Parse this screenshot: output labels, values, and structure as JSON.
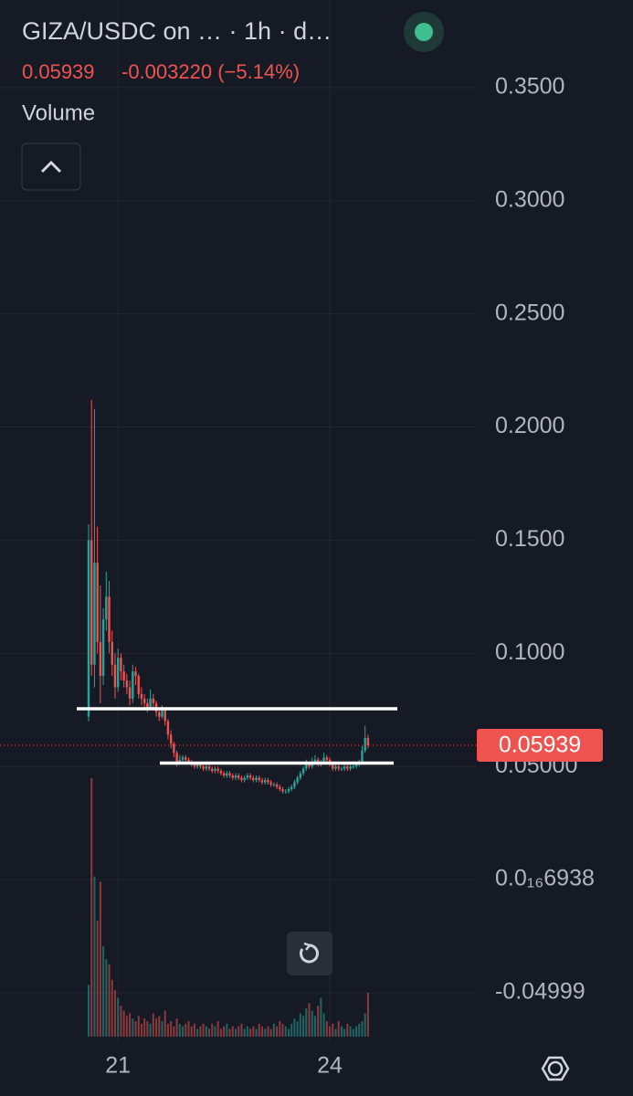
{
  "chart_data": {
    "type": "candlestick",
    "title": "GIZA/USDC on … · 1h · d…",
    "price": 0.05939,
    "change": "-0.003220 (−5.14%)",
    "volume_label": "Volume",
    "up_color": "#26a69a",
    "down_color": "#ef5350",
    "ylim": [
      -0.0714,
      0.3887
    ],
    "yticks": [
      {
        "value": 0.35,
        "label": "0.3500"
      },
      {
        "value": 0.3,
        "label": "0.3000"
      },
      {
        "value": 0.25,
        "label": "0.2500"
      },
      {
        "value": 0.2,
        "label": "0.2000"
      },
      {
        "value": 0.15,
        "label": "0.1500"
      },
      {
        "value": 0.1,
        "label": "0.1000"
      },
      {
        "value": 0.05,
        "label": "0.05000"
      },
      {
        "value": 6.938e-17,
        "label": "0.0₁₆6938"
      },
      -0.04999
    ],
    "grid": true,
    "levels": [
      0.0755,
      0.0515
    ],
    "categories": [
      null,
      null,
      null,
      null,
      null,
      null,
      null,
      null,
      null,
      null,
      "21",
      null,
      null,
      null,
      null,
      null,
      null,
      null,
      null,
      null,
      null,
      null,
      null,
      null,
      null,
      null,
      null,
      null,
      null,
      null,
      null,
      null,
      null,
      null,
      null,
      null,
      null,
      null,
      null,
      null,
      null,
      null,
      null,
      null,
      null,
      null,
      null,
      null,
      null,
      null,
      null,
      null,
      null,
      null,
      null,
      null,
      null,
      null,
      null,
      null,
      null,
      null,
      null,
      null,
      null,
      null,
      null,
      null,
      null,
      null,
      null,
      null,
      null,
      null,
      null,
      null,
      null,
      null,
      null,
      null,
      null,
      null,
      "24",
      null,
      null,
      null,
      null,
      null,
      null,
      null,
      null,
      null,
      null,
      null,
      null,
      null
    ],
    "ohlc": [
      [
        0.072,
        0.157,
        0.07,
        0.15
      ],
      [
        0.15,
        0.212,
        0.09,
        0.095
      ],
      [
        0.095,
        0.208,
        0.085,
        0.14
      ],
      [
        0.14,
        0.156,
        0.1,
        0.105
      ],
      [
        0.105,
        0.13,
        0.078,
        0.09
      ],
      [
        0.09,
        0.12,
        0.086,
        0.115
      ],
      [
        0.115,
        0.136,
        0.11,
        0.125
      ],
      [
        0.125,
        0.132,
        0.1,
        0.105
      ],
      [
        0.105,
        0.11,
        0.09,
        0.095
      ],
      [
        0.095,
        0.1,
        0.08,
        0.085
      ],
      [
        0.085,
        0.102,
        0.083,
        0.098
      ],
      [
        0.098,
        0.1,
        0.088,
        0.092
      ],
      [
        0.092,
        0.095,
        0.085,
        0.088
      ],
      [
        0.088,
        0.091,
        0.082,
        0.085
      ],
      [
        0.085,
        0.088,
        0.077,
        0.08
      ],
      [
        0.08,
        0.095,
        0.078,
        0.092
      ],
      [
        0.092,
        0.094,
        0.086,
        0.09
      ],
      [
        0.09,
        0.091,
        0.08,
        0.082
      ],
      [
        0.082,
        0.085,
        0.077,
        0.08
      ],
      [
        0.08,
        0.082,
        0.076,
        0.078
      ],
      [
        0.078,
        0.08,
        0.074,
        0.076
      ],
      [
        0.076,
        0.084,
        0.075,
        0.08
      ],
      [
        0.08,
        0.082,
        0.076,
        0.078
      ],
      [
        0.078,
        0.079,
        0.072,
        0.074
      ],
      [
        0.074,
        0.076,
        0.07,
        0.072
      ],
      [
        0.072,
        0.077,
        0.071,
        0.075
      ],
      [
        0.075,
        0.076,
        0.068,
        0.07
      ],
      [
        0.07,
        0.071,
        0.062,
        0.064
      ],
      [
        0.064,
        0.066,
        0.058,
        0.06
      ],
      [
        0.06,
        0.061,
        0.054,
        0.056
      ],
      [
        0.056,
        0.057,
        0.05,
        0.052
      ],
      [
        0.052,
        0.055,
        0.051,
        0.053
      ],
      [
        0.053,
        0.055,
        0.052,
        0.054
      ],
      [
        0.054,
        0.055,
        0.052,
        0.053
      ],
      [
        0.053,
        0.054,
        0.051,
        0.052
      ],
      [
        0.052,
        0.053,
        0.05,
        0.051
      ],
      [
        0.051,
        0.052,
        0.049,
        0.05
      ],
      [
        0.05,
        0.052,
        0.049,
        0.051
      ],
      [
        0.051,
        0.052,
        0.049,
        0.05
      ],
      [
        0.05,
        0.051,
        0.048,
        0.049
      ],
      [
        0.049,
        0.051,
        0.048,
        0.05
      ],
      [
        0.05,
        0.051,
        0.048,
        0.049
      ],
      [
        0.049,
        0.05,
        0.047,
        0.048
      ],
      [
        0.048,
        0.05,
        0.047,
        0.049
      ],
      [
        0.049,
        0.05,
        0.047,
        0.048
      ],
      [
        0.048,
        0.049,
        0.046,
        0.047
      ],
      [
        0.047,
        0.048,
        0.045,
        0.046
      ],
      [
        0.046,
        0.048,
        0.045,
        0.047
      ],
      [
        0.047,
        0.048,
        0.045,
        0.046
      ],
      [
        0.046,
        0.047,
        0.044,
        0.045
      ],
      [
        0.045,
        0.047,
        0.044,
        0.046
      ],
      [
        0.046,
        0.047,
        0.044,
        0.045
      ],
      [
        0.045,
        0.046,
        0.043,
        0.044
      ],
      [
        0.044,
        0.046,
        0.043,
        0.045
      ],
      [
        0.045,
        0.047,
        0.044,
        0.046
      ],
      [
        0.046,
        0.047,
        0.044,
        0.045
      ],
      [
        0.045,
        0.046,
        0.043,
        0.044
      ],
      [
        0.044,
        0.046,
        0.043,
        0.045
      ],
      [
        0.045,
        0.046,
        0.043,
        0.044
      ],
      [
        0.044,
        0.045,
        0.042,
        0.043
      ],
      [
        0.043,
        0.045,
        0.042,
        0.044
      ],
      [
        0.044,
        0.045,
        0.042,
        0.043
      ],
      [
        0.043,
        0.044,
        0.041,
        0.042
      ],
      [
        0.042,
        0.043,
        0.041,
        0.042
      ],
      [
        0.042,
        0.043,
        0.04,
        0.041
      ],
      [
        0.041,
        0.042,
        0.039,
        0.04
      ],
      [
        0.04,
        0.041,
        0.038,
        0.039
      ],
      [
        0.039,
        0.04,
        0.038,
        0.039
      ],
      [
        0.039,
        0.041,
        0.038,
        0.04
      ],
      [
        0.04,
        0.042,
        0.039,
        0.041
      ],
      [
        0.041,
        0.044,
        0.04,
        0.043
      ],
      [
        0.043,
        0.046,
        0.042,
        0.045
      ],
      [
        0.045,
        0.048,
        0.044,
        0.047
      ],
      [
        0.047,
        0.05,
        0.046,
        0.049
      ],
      [
        0.049,
        0.053,
        0.048,
        0.051
      ],
      [
        0.051,
        0.052,
        0.049,
        0.05
      ],
      [
        0.05,
        0.054,
        0.049,
        0.052
      ],
      [
        0.052,
        0.055,
        0.051,
        0.053
      ],
      [
        0.053,
        0.054,
        0.05,
        0.051
      ],
      [
        0.051,
        0.053,
        0.05,
        0.052
      ],
      [
        0.052,
        0.056,
        0.051,
        0.054
      ],
      [
        0.054,
        0.055,
        0.052,
        0.053
      ],
      [
        0.053,
        0.054,
        0.05,
        0.051
      ],
      [
        0.051,
        0.052,
        0.048,
        0.049
      ],
      [
        0.049,
        0.051,
        0.048,
        0.05
      ],
      [
        0.05,
        0.051,
        0.048,
        0.049
      ],
      [
        0.049,
        0.05,
        0.048,
        0.049
      ],
      [
        0.049,
        0.051,
        0.048,
        0.05
      ],
      [
        0.05,
        0.051,
        0.048,
        0.049
      ],
      [
        0.049,
        0.051,
        0.048,
        0.05
      ],
      [
        0.05,
        0.051,
        0.049,
        0.05
      ],
      [
        0.05,
        0.052,
        0.049,
        0.051
      ],
      [
        0.051,
        0.053,
        0.05,
        0.052
      ],
      [
        0.052,
        0.059,
        0.051,
        0.057
      ],
      [
        0.057,
        0.068,
        0.056,
        0.0626
      ],
      [
        0.0626,
        0.064,
        0.058,
        0.05939
      ]
    ],
    "volume": [
      20,
      100,
      62,
      45,
      60,
      35,
      30,
      28,
      22,
      18,
      15,
      12,
      10,
      8,
      9,
      7,
      6,
      8,
      5,
      7,
      6,
      5,
      9,
      7,
      8,
      6,
      10,
      5,
      6,
      4,
      7,
      5,
      4,
      5,
      6,
      4,
      5,
      3,
      4,
      5,
      4,
      3,
      5,
      4,
      6,
      3,
      4,
      5,
      3,
      4,
      3,
      4,
      5,
      3,
      4,
      3,
      4,
      3,
      5,
      4,
      3,
      4,
      3,
      5,
      4,
      6,
      5,
      4,
      3,
      5,
      7,
      6,
      9,
      8,
      11,
      13,
      10,
      8,
      12,
      15,
      9,
      6,
      4,
      5,
      3,
      6,
      4,
      3,
      5,
      4,
      3,
      4,
      5,
      6,
      9,
      17
    ]
  }
}
